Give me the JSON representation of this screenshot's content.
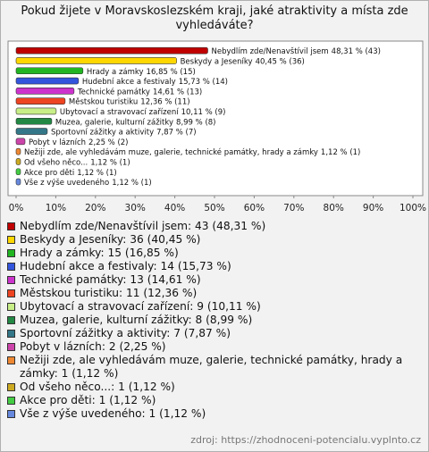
{
  "chart_data": {
    "type": "barh",
    "title": "Pokud žijete v Moravskoslezském kraji, jaké atraktivity a místa zde vyhledáváte?",
    "categories": [
      "Nebydlím zde/Nenavštívil jsem",
      "Beskydy a Jeseníky",
      "Hrady a zámky",
      "Hudební akce a festivaly",
      "Technické památky",
      "Městskou turistiku",
      "Ubytovací a stravovací zařízení",
      "Muzea, galerie, kulturní zážitky",
      "Sportovní zážitky a aktivity",
      "Pobyt v lázních",
      "Nežiji zde, ale vyhledávám muze, galerie, technické památky, hrady a zámky",
      "Od všeho něco...",
      "Akce pro děti",
      "Vše z výše uvedeného"
    ],
    "values": [
      48.31,
      40.45,
      16.85,
      15.73,
      14.61,
      12.36,
      10.11,
      8.99,
      7.87,
      2.25,
      1.12,
      1.12,
      1.12,
      1.12
    ],
    "value_labels": [
      "48,31 % (43)",
      "40,45 % (36)",
      "16,85 % (15)",
      "15,73 % (14)",
      "14,61 % (13)",
      "12,36 % (11)",
      "10,11 % (9)",
      "8,99 % (8)",
      "7,87 % (7)",
      "2,25 % (2)",
      "1,12 % (1)",
      "1,12 % (1)",
      "1,12 % (1)",
      "1,12 % (1)"
    ],
    "colors": [
      "#c00000",
      "#ffd700",
      "#22b522",
      "#3355dd",
      "#cc33cc",
      "#ee4422",
      "#c8ee88",
      "#228844",
      "#337788",
      "#cc44aa",
      "#ee8833",
      "#ccaa22",
      "#44cc44",
      "#6688dd"
    ],
    "legend": [
      "Nebydlím zde/Nenavštívil jsem: 43 (48,31 %)",
      "Beskydy a Jeseníky: 36 (40,45 %)",
      "Hrady a zámky: 15 (16,85 %)",
      "Hudební akce a festivaly: 14 (15,73 %)",
      "Technické památky: 13 (14,61 %)",
      "Městskou turistiku: 11 (12,36 %)",
      "Ubytovací a stravovací zařízení: 9 (10,11 %)",
      "Muzea, galerie, kulturní zážitky: 8 (8,99 %)",
      "Sportovní zážitky a aktivity: 7 (7,87 %)",
      "Pobyt v lázních: 2 (2,25 %)",
      "Nežiji zde, ale vyhledávám muze, galerie, technické památky, hrady a zámky: 1 (1,12 %)",
      "Od všeho něco...: 1 (1,12 %)",
      "Akce pro děti: 1 (1,12 %)",
      "Vše z výše uvedeného: 1 (1,12 %)"
    ],
    "xlim": [
      0,
      100
    ],
    "xticks": [
      {
        "value": 0,
        "label": "0%"
      },
      {
        "value": 10,
        "label": "10%"
      },
      {
        "value": 20,
        "label": "20%"
      },
      {
        "value": 30,
        "label": "30%"
      },
      {
        "value": 40,
        "label": "40%"
      },
      {
        "value": 50,
        "label": "50%"
      },
      {
        "value": 60,
        "label": "60%"
      },
      {
        "value": 70,
        "label": "70%"
      },
      {
        "value": 80,
        "label": "80%"
      },
      {
        "value": 90,
        "label": "90%"
      },
      {
        "value": 100,
        "label": "100%"
      }
    ],
    "source": "zdroj: https://zhodnoceni-potencialu.vyplnto.cz"
  }
}
